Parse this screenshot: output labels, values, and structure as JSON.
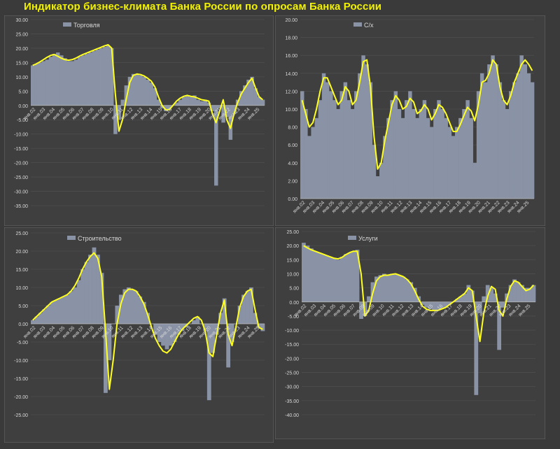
{
  "page_title": "Индикатор бизнес-климата Банка России по опросам Банка России",
  "colors": {
    "background": "#3a3a3a",
    "panel": "#3f3f3f",
    "bars": "#8a93a6",
    "line": "#ffff22",
    "axis_text": "#d8d8d8",
    "title": "#f2f200"
  },
  "chart_data": [
    {
      "type": "bar",
      "legend": "Торговля",
      "ylim": [
        -35,
        30
      ],
      "ytick_step": 5,
      "ticks": [
        "янв.02",
        "янв.03",
        "янв.04",
        "янв.05",
        "янв.06",
        "янв.07",
        "янв.08",
        "янв.09",
        "янв.10",
        "янв.11",
        "янв.12",
        "янв.13",
        "янв.14",
        "янв.15",
        "янв.16",
        "янв.17",
        "янв.18",
        "янв.19",
        "янв.20",
        "янв.21",
        "янв.22",
        "янв.23",
        "янв.24",
        "янв.25"
      ],
      "series": [
        {
          "kind": "bars",
          "values": [
            14,
            14.5,
            15,
            15.5,
            16,
            17,
            18,
            18.5,
            17.5,
            16.5,
            15.5,
            15.5,
            16,
            17,
            17.5,
            18,
            18.5,
            19,
            19.5,
            20,
            20.5,
            21,
            20,
            -10,
            -5,
            2,
            7,
            10,
            11,
            11,
            10.5,
            10,
            9,
            8,
            6,
            2,
            -1,
            -2,
            -1.5,
            0,
            1,
            2,
            3,
            3.5,
            3,
            3.5,
            2,
            1.5,
            2,
            1,
            -2,
            -28,
            -1,
            -6,
            -4,
            -12,
            -3,
            2,
            5,
            7,
            9,
            10,
            6,
            3,
            2
          ]
        },
        {
          "kind": "line",
          "values": [
            14,
            14.5,
            15.2,
            16,
            16.8,
            17.5,
            17.8,
            17.2,
            16.5,
            16,
            15.8,
            16,
            16.5,
            17.2,
            17.8,
            18.3,
            18.8,
            19.3,
            19.8,
            20.3,
            20.8,
            21.2,
            20,
            4,
            -9,
            -5,
            2,
            8,
            10.5,
            11,
            10.8,
            10.3,
            9.5,
            8.5,
            6.5,
            3,
            0,
            -1.5,
            -1.5,
            0,
            1.5,
            2.5,
            3.2,
            3.5,
            3.2,
            3,
            2.5,
            2,
            1.8,
            1.5,
            -3,
            -6,
            -2,
            2,
            -5,
            -8,
            -3,
            1,
            4,
            6,
            8,
            9.5,
            6,
            3,
            2
          ]
        }
      ]
    },
    {
      "type": "bar",
      "legend": "С/х",
      "ylim": [
        0,
        20
      ],
      "ytick_step": 2,
      "ticks": [
        "янв.02",
        "янв.03",
        "янв.04",
        "янв.05",
        "янв.06",
        "янв.07",
        "янв.08",
        "янв.09",
        "янв.10",
        "янв.11",
        "янв.12",
        "янв.13",
        "янв.14",
        "янв.15",
        "янв.16",
        "янв.17",
        "янв.18",
        "янв.19",
        "янв.20",
        "янв.21",
        "янв.22",
        "янв.23",
        "янв.24",
        "янв.25"
      ],
      "series": [
        {
          "kind": "bars",
          "values": [
            12,
            10,
            7,
            8,
            9,
            11,
            14,
            13,
            12,
            11,
            10,
            12,
            13,
            11,
            10,
            12,
            14,
            16,
            15,
            13,
            6,
            2.5,
            4,
            7,
            9,
            11,
            12,
            10,
            9,
            11,
            12,
            10,
            9,
            10,
            11,
            9,
            8,
            10,
            11,
            10,
            9,
            8,
            7,
            8,
            9,
            10,
            11,
            9,
            4,
            12,
            14,
            13,
            15,
            16,
            15,
            13,
            11,
            10,
            12,
            13,
            14,
            16,
            15,
            14,
            13
          ]
        },
        {
          "kind": "line",
          "values": [
            11,
            9.5,
            8,
            8.5,
            10,
            12,
            13.5,
            13.5,
            12.5,
            11.5,
            10.5,
            11,
            12.5,
            12,
            10.5,
            11,
            13,
            15.3,
            15.5,
            12.5,
            7,
            3.3,
            4,
            6.5,
            8.5,
            10.5,
            11.5,
            11,
            10,
            10.3,
            11.2,
            10.8,
            9.5,
            9.8,
            10.5,
            10,
            8.8,
            9.5,
            10.5,
            10.2,
            9.5,
            8.5,
            7.5,
            7.5,
            8.3,
            9.3,
            10.2,
            9.8,
            8.7,
            10.5,
            13,
            13.2,
            14,
            15.5,
            15,
            12.5,
            11,
            10.5,
            11.5,
            13,
            14,
            15,
            15.5,
            15,
            14.3
          ]
        }
      ]
    },
    {
      "type": "bar",
      "legend": "Строительство",
      "ylim": [
        -25,
        25
      ],
      "ytick_step": 5,
      "ticks": [
        "янв.02",
        "янв.03",
        "янв.04",
        "янв.05",
        "янв.06",
        "янв.07",
        "янв.08",
        "янв.09",
        "янв.10",
        "янв.11",
        "янв.12",
        "янв.13",
        "янв.14",
        "янв.15",
        "янв.16",
        "янв.17",
        "янв.18",
        "янв.19",
        "янв.20",
        "янв.21",
        "янв.22",
        "янв.23",
        "янв.24",
        "янв.25"
      ],
      "series": [
        {
          "kind": "bars",
          "values": [
            1,
            2,
            3,
            4,
            5,
            6,
            6.5,
            7,
            7.5,
            8,
            9,
            10,
            12,
            15,
            17,
            19,
            21,
            19,
            14,
            -19,
            -10,
            0,
            5,
            8,
            9.5,
            10,
            9.5,
            9,
            7.5,
            6,
            3,
            0,
            -3,
            -5,
            -6,
            -7,
            -6,
            -5,
            -3,
            -2,
            -1,
            0,
            1,
            2,
            0,
            -2,
            -21,
            -8,
            -3,
            3,
            7,
            -12,
            -5,
            0,
            5,
            8,
            9,
            10,
            3,
            -1,
            -2
          ]
        },
        {
          "kind": "line",
          "values": [
            1,
            2,
            3,
            4,
            5,
            6,
            6.5,
            7,
            7.5,
            8,
            9,
            10.5,
            12.5,
            15,
            17,
            18.5,
            19.5,
            18,
            13,
            -2,
            -18,
            -10,
            0,
            5.5,
            8.5,
            9.5,
            9.5,
            9,
            7.5,
            5.5,
            2.5,
            -1,
            -4,
            -6,
            -7.5,
            -8,
            -7,
            -5,
            -3,
            -1.5,
            -0.5,
            0.5,
            1.5,
            2,
            1,
            -2,
            -8,
            -9,
            -3,
            3,
            6.5,
            -3,
            -6,
            -1,
            4.5,
            7.5,
            9,
            9.5,
            4,
            -1,
            -1.5
          ]
        }
      ]
    },
    {
      "type": "bar",
      "legend": "Услуги",
      "ylim": [
        -40,
        25
      ],
      "ytick_step": 5,
      "ticks": [
        "янв.02",
        "янв.03",
        "янв.04",
        "янв.05",
        "янв.06",
        "янв.07",
        "янв.08",
        "янв.09",
        "янв.10",
        "янв.11",
        "янв.12",
        "янв.13",
        "янв.14",
        "янв.15",
        "янв.16",
        "янв.17",
        "янв.18",
        "янв.19",
        "янв.20",
        "янв.21",
        "янв.22",
        "янв.23",
        "янв.24",
        "янв.25"
      ],
      "series": [
        {
          "kind": "bars",
          "values": [
            21,
            20,
            19,
            18,
            17.5,
            17,
            16.5,
            16,
            15.5,
            15,
            16,
            17,
            17.5,
            18,
            18.5,
            -6,
            -5,
            2,
            7,
            9,
            9.5,
            10,
            9.5,
            10,
            10,
            9.5,
            9,
            8,
            7,
            5,
            2,
            -1,
            -2,
            -2.5,
            -3,
            -3,
            -2.5,
            -2,
            -1,
            0,
            1,
            2,
            3,
            6,
            4,
            -33,
            -4,
            2,
            6,
            5,
            3,
            -17,
            -2,
            3,
            6,
            8,
            7,
            6,
            5,
            5,
            6
          ]
        },
        {
          "kind": "line",
          "values": [
            20,
            19.2,
            18.5,
            18,
            17.5,
            17,
            16.5,
            16,
            15.5,
            15.3,
            15.8,
            16.8,
            17.5,
            18,
            18,
            10,
            -5,
            -3,
            3,
            7.5,
            9,
            9.5,
            9.5,
            9.8,
            10,
            9.5,
            9,
            8,
            6.5,
            4,
            1,
            -1.5,
            -2.5,
            -3,
            -3,
            -3,
            -2.5,
            -2,
            -1,
            0,
            1,
            2,
            3,
            5,
            4,
            -5,
            -14,
            -4,
            2,
            5.5,
            4.5,
            -3,
            -5,
            1,
            5.5,
            7.5,
            7,
            5.5,
            4,
            4.5,
            6
          ]
        }
      ]
    }
  ]
}
